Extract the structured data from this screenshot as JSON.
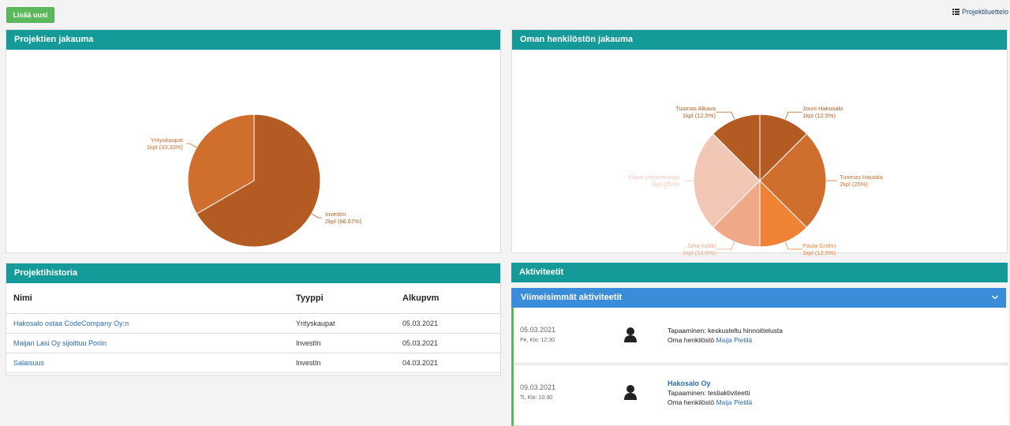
{
  "toolbar": {
    "add_label": "Lisää uusi",
    "list_link": "Projektiluettelo"
  },
  "projects_chart": {
    "title": "Projektien jakauma",
    "chart_data": {
      "type": "pie",
      "slices": [
        {
          "name": "InvestIn",
          "count": 2,
          "percent": 66.67,
          "label": "2kpl (66.67%)",
          "color": "#b35b22"
        },
        {
          "name": "Yrityskaupat",
          "count": 1,
          "percent": 33.33,
          "label": "1kpl (33.33%)",
          "color": "#d06e2e"
        }
      ]
    }
  },
  "staff_chart": {
    "title": "Oman henkilöstön jakauma",
    "chart_data": {
      "type": "pie",
      "slices": [
        {
          "name": "Jouni Hakosalo",
          "count": 1,
          "percent": 12.5,
          "label": "1kpl (12.5%)",
          "color": "#b35b22"
        },
        {
          "name": "Tuomas Hautala",
          "count": 2,
          "percent": 25,
          "label": "2kpl (25%)",
          "color": "#d06e2e"
        },
        {
          "name": "Paula Gröhn",
          "count": 1,
          "percent": 12.5,
          "label": "1kpl (12.5%)",
          "color": "#ee8235"
        },
        {
          "name": "Juha Kekki",
          "count": 1,
          "percent": 12.5,
          "label": "1kpl (12.5%)",
          "color": "#efa888"
        },
        {
          "name": "Ylppö yritysneuvoja",
          "count": 2,
          "percent": 25,
          "label": "2kpl (25%)",
          "color": "#f3c7b6"
        },
        {
          "name": "Tuomas Alkava",
          "count": 1,
          "percent": 12.5,
          "label": "1kpl (12.5%)",
          "color": "#b35b22"
        }
      ]
    }
  },
  "history": {
    "title": "Projektihistoria",
    "columns": [
      "Nimi",
      "Tyyppi",
      "Alkupvm"
    ],
    "rows": [
      [
        "Hakosalo ostaa CodeCompany Oy:n",
        "Yrityskaupat",
        "05.03.2021"
      ],
      [
        "Maijan Lasi Oy sijoittuu Poriin",
        "InvestIn",
        "05.03.2021"
      ],
      [
        "Salaisuus",
        "InvestIn",
        "04.03.2021"
      ]
    ]
  },
  "activities": {
    "title": "Aktiviteetit",
    "subtitle": "Viimeisimmät aktiviteetit",
    "items": [
      {
        "date": "05.03.2021",
        "time": "Pe, Klo: 12:30",
        "company": "",
        "text": "Tapaaminen: keskusteltu hinnoittelusta",
        "staff_prefix": "Oma henkilöstö",
        "staff_name": "Maija Pietilä"
      },
      {
        "date": "09.03.2021",
        "time": "Ti, Klo: 10:30",
        "company": "Hakosalo Oy",
        "text": "Tapaaminen: testiaktiviteetti",
        "staff_prefix": "Oma henkilöstö",
        "staff_name": "Maija Pietilä"
      }
    ]
  }
}
